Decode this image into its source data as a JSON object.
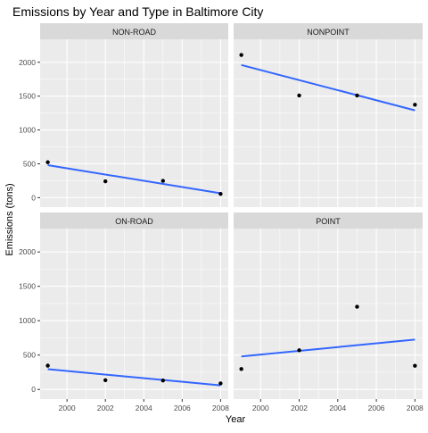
{
  "chart_data": {
    "type": "scatter",
    "title": "Emissions by Year and Type in Baltimore City",
    "xlabel": "Year",
    "ylabel": "Emissions (tons)",
    "xlim": [
      1998.6,
      2008.4
    ],
    "ylim": [
      -140,
      2340
    ],
    "x_ticks": [
      2000,
      2002,
      2004,
      2006,
      2008
    ],
    "y_ticks": [
      0,
      500,
      1000,
      1500,
      2000
    ],
    "grid": true,
    "colors": {
      "panel_bg": "#ebebeb",
      "strip_bg": "#d9d9d9",
      "grid": "#ffffff",
      "point": "#000000",
      "fit_line": "#3366ff",
      "text": "#1a1a1a",
      "tick_text": "#4d4d4d"
    },
    "panels": [
      {
        "strip": "NON-ROAD",
        "points": [
          {
            "x": 1999,
            "y": 522.9
          },
          {
            "x": 2002,
            "y": 241.0
          },
          {
            "x": 2005,
            "y": 248.9
          },
          {
            "x": 2008,
            "y": 55.8
          }
        ],
        "fit": [
          {
            "x": 1999,
            "y": 480
          },
          {
            "x": 2008,
            "y": 65
          }
        ]
      },
      {
        "strip": "NONPOINT",
        "points": [
          {
            "x": 1999,
            "y": 2107.6
          },
          {
            "x": 2002,
            "y": 1509.5
          },
          {
            "x": 2005,
            "y": 1509.5
          },
          {
            "x": 2008,
            "y": 1373.2
          }
        ],
        "fit": [
          {
            "x": 1999,
            "y": 1960
          },
          {
            "x": 2008,
            "y": 1290
          }
        ]
      },
      {
        "strip": "ON-ROAD",
        "points": [
          {
            "x": 1999,
            "y": 346.8
          },
          {
            "x": 2002,
            "y": 134.3
          },
          {
            "x": 2005,
            "y": 130.4
          },
          {
            "x": 2008,
            "y": 88.3
          }
        ],
        "fit": [
          {
            "x": 1999,
            "y": 295
          },
          {
            "x": 2008,
            "y": 60
          }
        ]
      },
      {
        "strip": "POINT",
        "points": [
          {
            "x": 1999,
            "y": 296.8
          },
          {
            "x": 2002,
            "y": 569.3
          },
          {
            "x": 2005,
            "y": 1202.5
          },
          {
            "x": 2008,
            "y": 345.0
          }
        ],
        "fit": [
          {
            "x": 1999,
            "y": 480
          },
          {
            "x": 2008,
            "y": 725
          }
        ]
      }
    ]
  }
}
